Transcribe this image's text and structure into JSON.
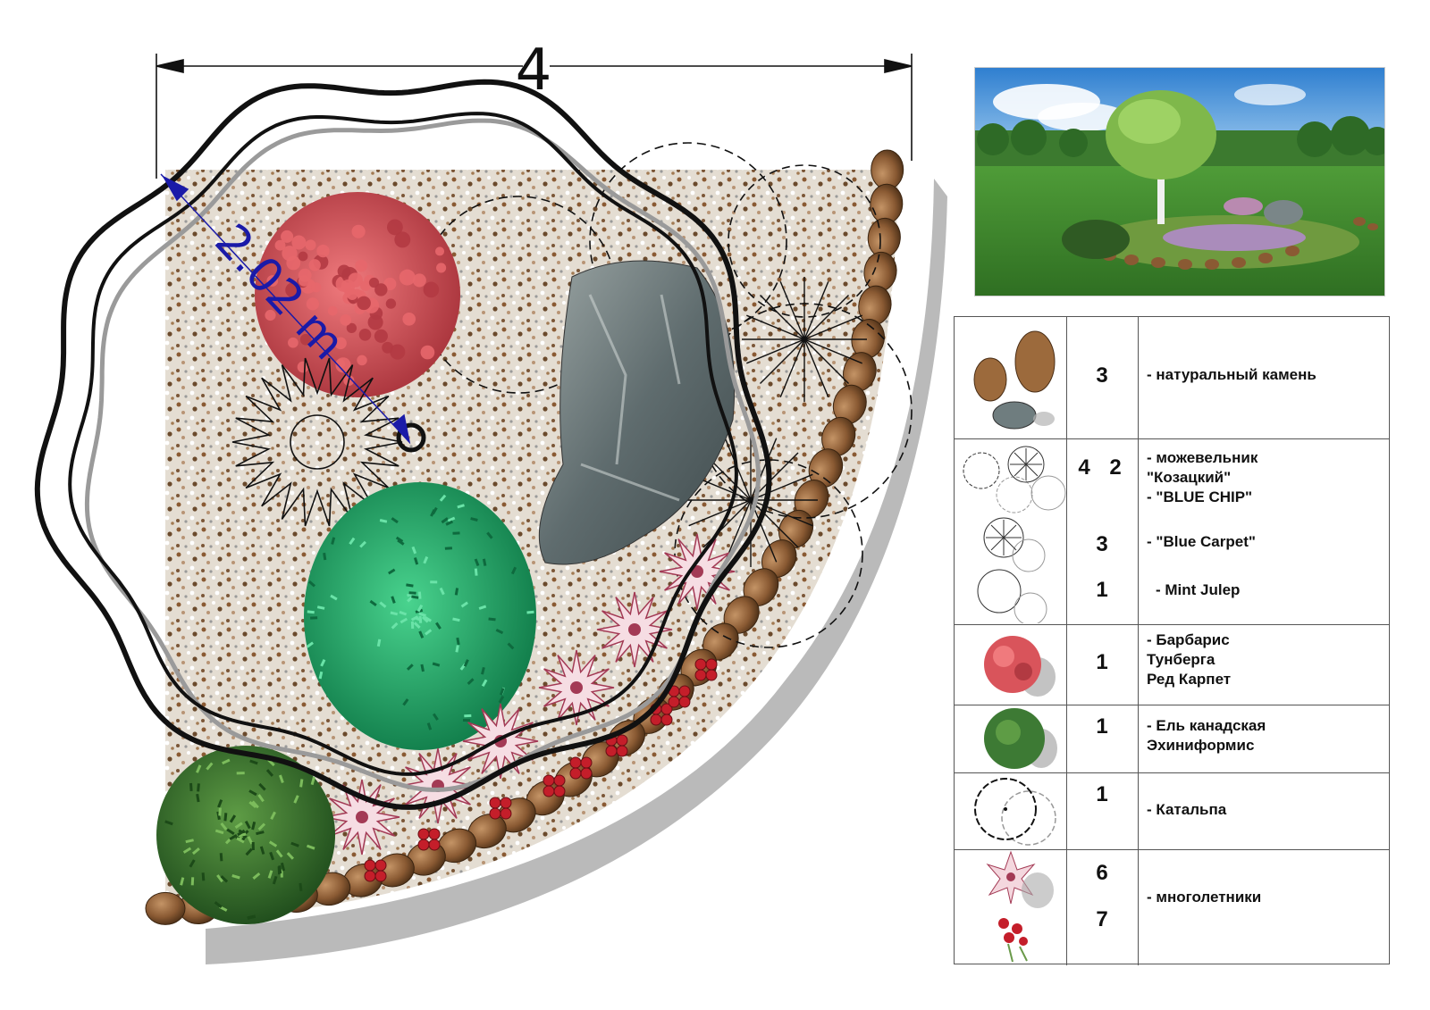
{
  "plan": {
    "width_label": "4",
    "radius_label": "2.02 m"
  },
  "legend": {
    "rows": [
      {
        "qty": "3",
        "name": "- натуральный камень",
        "icon": "stone-icon"
      },
      {
        "qty_a": "4",
        "qty_b": "2",
        "qty_c": "3",
        "qty_d": "1",
        "name_a": "- можевельник",
        "name_b": "\"Козацкий\"",
        "name_c": "- \"BLUE CHIP\"",
        "name_d": "- \"Blue Carpet\"",
        "name_e": "- Mint Julep",
        "icon": "juniper-symbol-icon"
      },
      {
        "qty": "1",
        "name_a": "- Барбарис",
        "name_b": "Тунберга",
        "name_c": "Ред Карпет",
        "icon": "barberry-icon"
      },
      {
        "qty": "1",
        "name_a": "- Ель канадская",
        "name_b": "Эхиниформис",
        "icon": "spruce-icon"
      },
      {
        "qty": "1",
        "name": "- Катальпа",
        "icon": "catalpa-symbol-icon"
      },
      {
        "qty_a": "6",
        "qty_b": "7",
        "name": "- многолетники",
        "icon": "perennial-icon"
      }
    ]
  },
  "colors": {
    "gravel": "#d9cfc0",
    "stone_brown": "#8a5a33",
    "barberry": "#d9545b",
    "spruce": "#1fa86b",
    "shrub_green": "#3d7a34",
    "rock_grey": "#6f7d7f",
    "dimension_blue": "#1a1aa8",
    "sky": "#5aa6e0",
    "lawn": "#3d8a2e"
  }
}
